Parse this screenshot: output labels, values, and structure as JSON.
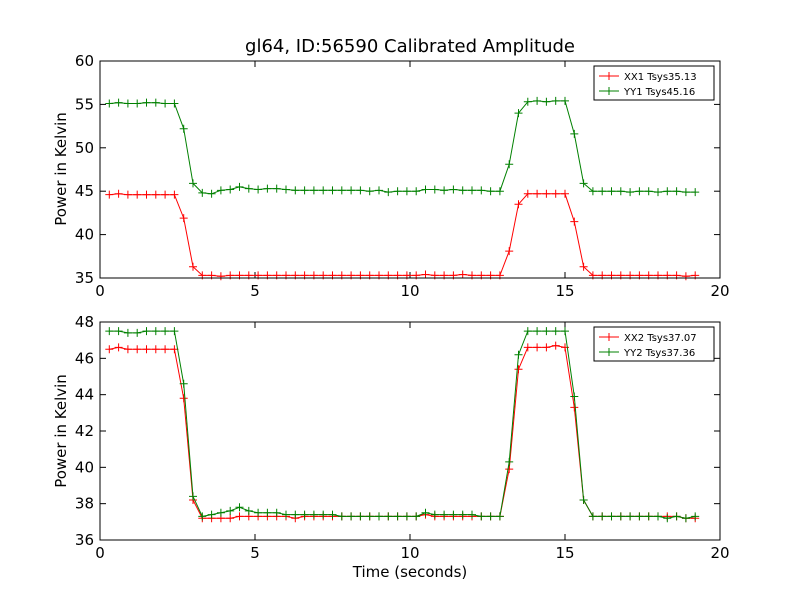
{
  "title": "gl64, ID:56590 Calibrated Amplitude",
  "chart_data": [
    {
      "type": "line",
      "ylabel": "Power in Kelvin",
      "xlabel": "",
      "xlim": [
        0,
        20
      ],
      "ylim": [
        35,
        60
      ],
      "xticks": [
        0,
        5,
        10,
        15,
        20
      ],
      "yticks": [
        35,
        40,
        45,
        50,
        55,
        60
      ],
      "legend_position": "top-right",
      "marker": "plus",
      "series": [
        {
          "name": "XX1 Tsys35.13",
          "color": "#ff0000",
          "x": [
            0.3,
            0.6,
            0.9,
            1.2,
            1.5,
            1.8,
            2.1,
            2.4,
            2.7,
            3.0,
            3.3,
            3.6,
            3.9,
            4.2,
            4.5,
            4.8,
            5.1,
            5.4,
            5.7,
            6.0,
            6.3,
            6.6,
            6.9,
            7.2,
            7.5,
            7.8,
            8.1,
            8.4,
            8.7,
            9.0,
            9.3,
            9.6,
            9.9,
            10.2,
            10.5,
            10.8,
            11.1,
            11.4,
            11.7,
            12.0,
            12.3,
            12.6,
            12.9,
            13.2,
            13.5,
            13.8,
            14.1,
            14.4,
            14.7,
            15.0,
            15.3,
            15.6,
            15.9,
            16.2,
            16.5,
            16.8,
            17.1,
            17.4,
            17.7,
            18.0,
            18.3,
            18.6,
            18.9,
            19.2
          ],
          "y": [
            44.6,
            44.7,
            44.6,
            44.6,
            44.6,
            44.6,
            44.6,
            44.6,
            41.9,
            36.3,
            35.3,
            35.3,
            35.2,
            35.3,
            35.3,
            35.3,
            35.3,
            35.3,
            35.3,
            35.3,
            35.3,
            35.3,
            35.3,
            35.3,
            35.3,
            35.3,
            35.3,
            35.3,
            35.3,
            35.3,
            35.3,
            35.3,
            35.3,
            35.3,
            35.4,
            35.3,
            35.3,
            35.3,
            35.4,
            35.3,
            35.3,
            35.3,
            35.3,
            38.1,
            43.5,
            44.7,
            44.7,
            44.7,
            44.7,
            44.7,
            41.5,
            36.3,
            35.3,
            35.3,
            35.3,
            35.3,
            35.3,
            35.3,
            35.3,
            35.3,
            35.3,
            35.3,
            35.2,
            35.3
          ]
        },
        {
          "name": "YY1 Tsys45.16",
          "color": "#008000",
          "x": [
            0.3,
            0.6,
            0.9,
            1.2,
            1.5,
            1.8,
            2.1,
            2.4,
            2.7,
            3.0,
            3.3,
            3.6,
            3.9,
            4.2,
            4.5,
            4.8,
            5.1,
            5.4,
            5.7,
            6.0,
            6.3,
            6.6,
            6.9,
            7.2,
            7.5,
            7.8,
            8.1,
            8.4,
            8.7,
            9.0,
            9.3,
            9.6,
            9.9,
            10.2,
            10.5,
            10.8,
            11.1,
            11.4,
            11.7,
            12.0,
            12.3,
            12.6,
            12.9,
            13.2,
            13.5,
            13.8,
            14.1,
            14.4,
            14.7,
            15.0,
            15.3,
            15.6,
            15.9,
            16.2,
            16.5,
            16.8,
            17.1,
            17.4,
            17.7,
            18.0,
            18.3,
            18.6,
            18.9,
            19.2
          ],
          "y": [
            55.1,
            55.2,
            55.1,
            55.1,
            55.2,
            55.2,
            55.1,
            55.1,
            52.2,
            45.9,
            44.8,
            44.7,
            45.1,
            45.2,
            45.5,
            45.3,
            45.2,
            45.3,
            45.3,
            45.2,
            45.1,
            45.1,
            45.1,
            45.1,
            45.1,
            45.1,
            45.1,
            45.1,
            45.0,
            45.1,
            44.9,
            45.0,
            45.0,
            45.0,
            45.2,
            45.2,
            45.1,
            45.2,
            45.1,
            45.1,
            45.1,
            45.0,
            45.0,
            48.1,
            54.0,
            55.3,
            55.4,
            55.3,
            55.4,
            55.4,
            51.6,
            45.9,
            45.0,
            45.0,
            45.0,
            45.0,
            44.9,
            45.0,
            45.0,
            44.9,
            45.0,
            45.0,
            44.9,
            44.9
          ]
        }
      ]
    },
    {
      "type": "line",
      "ylabel": "Power in Kelvin",
      "xlabel": "Time (seconds)",
      "xlim": [
        0,
        20
      ],
      "ylim": [
        36,
        48
      ],
      "xticks": [
        0,
        5,
        10,
        15,
        20
      ],
      "yticks": [
        36,
        38,
        40,
        42,
        44,
        46,
        48
      ],
      "legend_position": "top-right",
      "marker": "plus",
      "series": [
        {
          "name": "XX2 Tsys37.07",
          "color": "#ff0000",
          "x": [
            0.3,
            0.6,
            0.9,
            1.2,
            1.5,
            1.8,
            2.1,
            2.4,
            2.7,
            3.0,
            3.3,
            3.6,
            3.9,
            4.2,
            4.5,
            4.8,
            5.1,
            5.4,
            5.7,
            6.0,
            6.3,
            6.6,
            6.9,
            7.2,
            7.5,
            7.8,
            8.1,
            8.4,
            8.7,
            9.0,
            9.3,
            9.6,
            9.9,
            10.2,
            10.5,
            10.8,
            11.1,
            11.4,
            11.7,
            12.0,
            12.3,
            12.6,
            12.9,
            13.2,
            13.5,
            13.8,
            14.1,
            14.4,
            14.7,
            15.0,
            15.3,
            15.6,
            15.9,
            16.2,
            16.5,
            16.8,
            17.1,
            17.4,
            17.7,
            18.0,
            18.3,
            18.6,
            18.9,
            19.2
          ],
          "y": [
            46.5,
            46.6,
            46.5,
            46.5,
            46.5,
            46.5,
            46.5,
            46.5,
            43.8,
            38.2,
            37.2,
            37.2,
            37.2,
            37.2,
            37.3,
            37.3,
            37.3,
            37.3,
            37.3,
            37.3,
            37.2,
            37.3,
            37.3,
            37.3,
            37.3,
            37.3,
            37.3,
            37.3,
            37.3,
            37.3,
            37.3,
            37.3,
            37.3,
            37.3,
            37.4,
            37.3,
            37.3,
            37.3,
            37.3,
            37.3,
            37.3,
            37.3,
            37.3,
            39.9,
            45.4,
            46.6,
            46.6,
            46.6,
            46.7,
            46.6,
            43.3,
            38.2,
            37.3,
            37.3,
            37.3,
            37.3,
            37.3,
            37.3,
            37.3,
            37.3,
            37.3,
            37.3,
            37.2,
            37.2
          ]
        },
        {
          "name": "YY2 Tsys37.36",
          "color": "#008000",
          "x": [
            0.3,
            0.6,
            0.9,
            1.2,
            1.5,
            1.8,
            2.1,
            2.4,
            2.7,
            3.0,
            3.3,
            3.6,
            3.9,
            4.2,
            4.5,
            4.8,
            5.1,
            5.4,
            5.7,
            6.0,
            6.3,
            6.6,
            6.9,
            7.2,
            7.5,
            7.8,
            8.1,
            8.4,
            8.7,
            9.0,
            9.3,
            9.6,
            9.9,
            10.2,
            10.5,
            10.8,
            11.1,
            11.4,
            11.7,
            12.0,
            12.3,
            12.6,
            12.9,
            13.2,
            13.5,
            13.8,
            14.1,
            14.4,
            14.7,
            15.0,
            15.3,
            15.6,
            15.9,
            16.2,
            16.5,
            16.8,
            17.1,
            17.4,
            17.7,
            18.0,
            18.3,
            18.6,
            18.9,
            19.2
          ],
          "y": [
            47.5,
            47.5,
            47.4,
            47.4,
            47.5,
            47.5,
            47.5,
            47.5,
            44.6,
            38.4,
            37.3,
            37.4,
            37.5,
            37.6,
            37.8,
            37.6,
            37.5,
            37.5,
            37.5,
            37.4,
            37.4,
            37.4,
            37.4,
            37.4,
            37.4,
            37.3,
            37.3,
            37.3,
            37.3,
            37.3,
            37.3,
            37.3,
            37.3,
            37.3,
            37.5,
            37.4,
            37.4,
            37.4,
            37.4,
            37.4,
            37.3,
            37.3,
            37.3,
            40.3,
            46.2,
            47.5,
            47.5,
            47.5,
            47.5,
            47.5,
            43.9,
            38.2,
            37.3,
            37.3,
            37.3,
            37.3,
            37.3,
            37.3,
            37.3,
            37.3,
            37.2,
            37.3,
            37.2,
            37.3
          ]
        }
      ]
    }
  ]
}
